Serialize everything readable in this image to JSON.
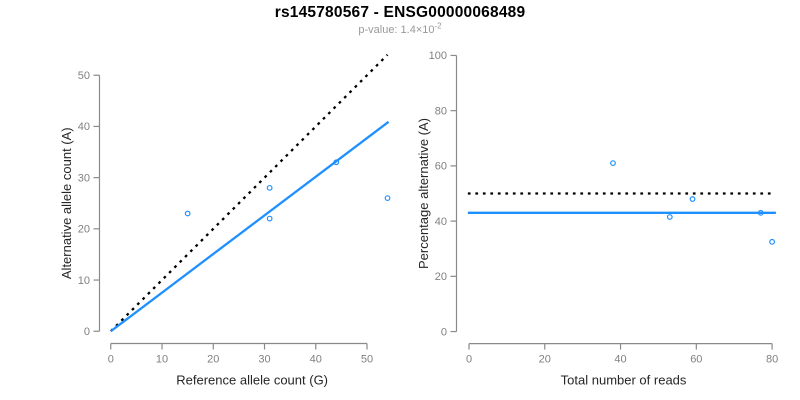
{
  "header": {
    "title": "rs145780567 - ENSG00000068489",
    "pvalue_prefix": "p-value: 1.4×10",
    "pvalue_exponent": "-2"
  },
  "colors": {
    "accent_blue": "#1E90FF",
    "identity_black": "#000000",
    "axis_gray": "#8a8a8a",
    "tick_label_gray": "#808080",
    "axis_title_color": "#262626",
    "subtitle_gray": "#999999"
  },
  "chart_data": [
    {
      "type": "scatter",
      "name": "allele-count-plot",
      "xlabel": "Reference allele count (G)",
      "ylabel": "Alternative allele count (A)",
      "xlim": [
        -2.2,
        56.2
      ],
      "ylim": [
        -2.2,
        56.2
      ],
      "xticks": [
        0,
        10,
        20,
        30,
        40,
        50
      ],
      "yticks": [
        0,
        10,
        20,
        30,
        40,
        50
      ],
      "grid": false,
      "legend": "none",
      "points": [
        [
          15,
          23
        ],
        [
          31,
          28
        ],
        [
          31,
          22
        ],
        [
          44,
          33
        ],
        [
          54,
          26
        ]
      ],
      "lines": [
        {
          "name": "identity-line",
          "x1": 0,
          "y1": 0,
          "x2": 54,
          "y2": 54,
          "color": "#000000",
          "dash": true
        },
        {
          "name": "fit-line",
          "x1": 0,
          "y1": 0,
          "x2": 54.2,
          "y2": 40.9,
          "color": "#1E90FF",
          "dash": false
        }
      ]
    },
    {
      "type": "scatter",
      "name": "percentage-alternative-plot",
      "xlabel": "Total number of reads",
      "ylabel": "Percentage alternative (A)",
      "xlim": [
        -3.3,
        83.3
      ],
      "ylim": [
        -4,
        104
      ],
      "xticks": [
        0,
        20,
        40,
        60,
        80
      ],
      "yticks": [
        0,
        20,
        40,
        60,
        80,
        100
      ],
      "grid": false,
      "legend": "none",
      "points": [
        [
          38,
          61
        ],
        [
          53,
          41.5
        ],
        [
          59,
          48
        ],
        [
          77,
          43
        ],
        [
          80,
          32.5
        ]
      ],
      "lines": [
        {
          "name": "expected-50pct-line",
          "x1": -0.3,
          "y1": 50,
          "x2": 80.3,
          "y2": 50,
          "color": "#000000",
          "dash": true
        },
        {
          "name": "mean-percentage-line",
          "x1": -0.3,
          "y1": 43,
          "x2": 81,
          "y2": 43,
          "color": "#1E90FF",
          "dash": false
        }
      ]
    }
  ]
}
